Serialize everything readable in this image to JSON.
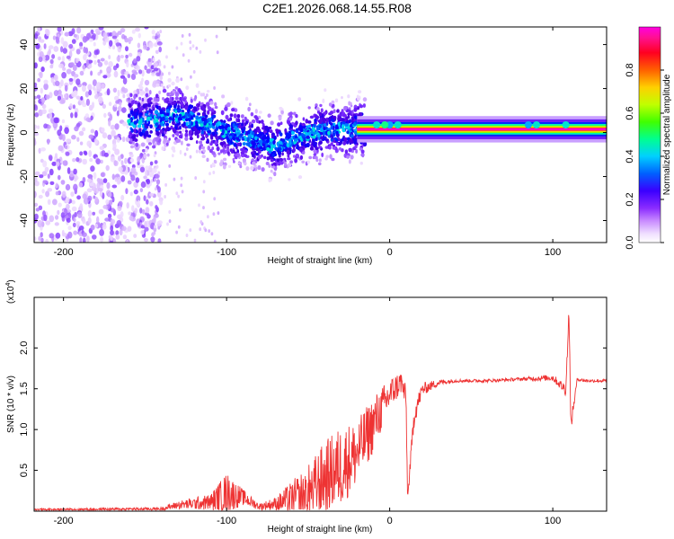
{
  "title": "C2E1.2026.068.14.55.R08",
  "chart_data": [
    {
      "type": "heatmap",
      "name": "spectrogram",
      "xlabel": "Height of straight line (km)",
      "ylabel": "Frequency (Hz)",
      "xlim": [
        -218,
        133
      ],
      "ylim": [
        -50,
        48
      ],
      "xticks": [
        "-200",
        "-100",
        "0",
        "100"
      ],
      "yticks": [
        "-40",
        "-20",
        "0",
        "20",
        "40"
      ],
      "colorbar": {
        "label": "Normalized spectral amplitude",
        "range": [
          0,
          1
        ],
        "ticks": [
          "0.0",
          "0.2",
          "0.4",
          "0.6",
          "0.8"
        ],
        "colormap": [
          "#ffffff",
          "#e6ccff",
          "#b27bff",
          "#7a2cff",
          "#4b00e0",
          "#0000ff",
          "#00c8ff",
          "#00ff9c",
          "#7dff00",
          "#ffff00",
          "#ff9000",
          "#ff0000",
          "#ff1493",
          "#ff00ff"
        ]
      },
      "features": {
        "noise_region": {
          "x": [
            -218,
            -145
          ],
          "freq": [
            -50,
            48
          ],
          "amplitude": 0.15
        },
        "scattered_region": {
          "x": [
            -145,
            -20
          ],
          "center_freq": [
            5,
            8,
            3,
            -2,
            -6,
            0,
            2
          ],
          "center_x": [
            -150,
            -130,
            -110,
            -90,
            -70,
            -50,
            -25
          ],
          "amplitude": 0.35
        },
        "carrier_band": {
          "x": [
            -20,
            133
          ],
          "freq": 1.5,
          "amplitude": 1.0
        }
      }
    },
    {
      "type": "line",
      "name": "snr",
      "xlabel": "Height of straight line (km)",
      "ylabel": "SNR (10 * v/v)",
      "multiplier": "(x10",
      "multiplier_exp": "4",
      "multiplier_close": ")",
      "xlim": [
        -218,
        133
      ],
      "ylim": [
        0,
        2.62
      ],
      "xticks": [
        "-200",
        "-100",
        "0",
        "100"
      ],
      "yticks": [
        "0.5",
        "1.0",
        "1.5",
        "2.0"
      ],
      "color": "#ee3333",
      "x_knots": [
        -218,
        -140,
        -130,
        -110,
        -100,
        -90,
        -80,
        -70,
        -50,
        -40,
        -30,
        -20,
        -10,
        0,
        7,
        10,
        11,
        15,
        20,
        30,
        40,
        60,
        80,
        90,
        100,
        105,
        108,
        110,
        111,
        115,
        120,
        133
      ],
      "y_knots": [
        0.02,
        0.03,
        0.08,
        0.12,
        0.25,
        0.18,
        0.06,
        0.1,
        0.25,
        0.45,
        0.6,
        0.75,
        1.1,
        1.45,
        1.6,
        1.4,
        0.15,
        1.2,
        1.5,
        1.58,
        1.6,
        1.6,
        1.62,
        1.63,
        1.64,
        1.55,
        1.5,
        2.5,
        1.05,
        1.62,
        1.6,
        1.6
      ],
      "amp_knots": [
        0.01,
        0.02,
        0.05,
        0.1,
        0.25,
        0.1,
        0.04,
        0.08,
        0.35,
        0.45,
        0.5,
        0.4,
        0.35,
        0.2,
        0.15,
        0.15,
        0.05,
        0.15,
        0.08,
        0.04,
        0.02,
        0.02,
        0.02,
        0.03,
        0.04,
        0.06,
        0.08,
        0.1,
        0.1,
        0.02,
        0.02,
        0.02
      ]
    }
  ]
}
